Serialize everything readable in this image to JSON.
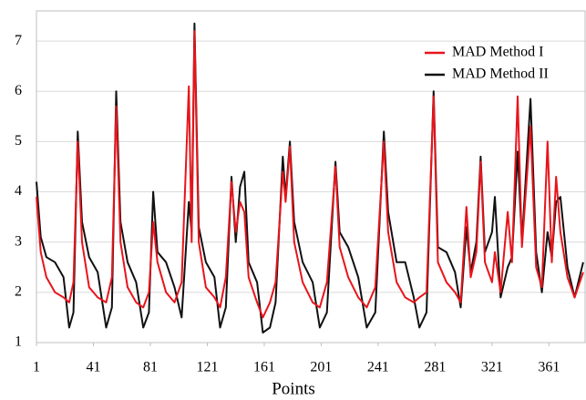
{
  "chart_data": {
    "type": "line",
    "x_label": "Points",
    "x": [
      1,
      4,
      8,
      14,
      20,
      24,
      27,
      30,
      33,
      38,
      44,
      50,
      54,
      57,
      60,
      65,
      71,
      76,
      80,
      83,
      86,
      92,
      98,
      103,
      108,
      110,
      112,
      115,
      120,
      126,
      130,
      134,
      138,
      141,
      144,
      147,
      150,
      156,
      160,
      165,
      169,
      174,
      176,
      179,
      182,
      188,
      195,
      200,
      205,
      211,
      214,
      220,
      227,
      233,
      239,
      245,
      248,
      254,
      260,
      266,
      270,
      275,
      280,
      283,
      289,
      295,
      299,
      303,
      306,
      310,
      313,
      316,
      321,
      323,
      327,
      332,
      335,
      339,
      342,
      348,
      352,
      356,
      360,
      363,
      366,
      369,
      374,
      379,
      385
    ],
    "series": [
      {
        "name": "MAD Method I",
        "color": "#e8141b",
        "values": [
          3.9,
          2.8,
          2.3,
          2.0,
          1.9,
          1.8,
          2.2,
          5.0,
          3.0,
          2.1,
          1.9,
          1.8,
          2.3,
          5.7,
          3.0,
          2.1,
          1.8,
          1.7,
          2.0,
          3.4,
          2.6,
          2.0,
          1.8,
          2.2,
          6.1,
          3.0,
          7.2,
          3.0,
          2.1,
          1.9,
          1.7,
          2.3,
          4.2,
          3.2,
          3.8,
          3.6,
          2.3,
          1.8,
          1.5,
          1.8,
          2.2,
          4.4,
          3.8,
          4.9,
          3.0,
          2.2,
          1.8,
          1.7,
          2.2,
          4.5,
          2.9,
          2.3,
          1.9,
          1.7,
          2.1,
          5.0,
          3.2,
          2.2,
          1.9,
          1.8,
          1.9,
          2.0,
          5.9,
          2.6,
          2.2,
          2.0,
          1.8,
          3.7,
          2.3,
          2.8,
          4.6,
          2.6,
          2.2,
          2.8,
          2.0,
          3.6,
          2.6,
          5.9,
          2.9,
          5.3,
          2.5,
          2.1,
          5.0,
          2.6,
          4.3,
          3.2,
          2.3,
          1.9,
          2.4
        ]
      },
      {
        "name": "MAD Method II",
        "color": "#111111",
        "values": [
          4.2,
          3.1,
          2.7,
          2.6,
          2.3,
          1.3,
          1.6,
          5.2,
          3.4,
          2.7,
          2.4,
          1.3,
          1.7,
          6.0,
          3.4,
          2.6,
          2.2,
          1.3,
          1.6,
          4.0,
          2.8,
          2.6,
          2.1,
          1.5,
          3.8,
          3.2,
          7.35,
          3.3,
          2.6,
          2.3,
          1.3,
          1.7,
          4.3,
          3.0,
          4.1,
          4.4,
          2.6,
          2.2,
          1.2,
          1.3,
          1.8,
          4.7,
          3.9,
          5.0,
          3.4,
          2.6,
          2.2,
          1.3,
          1.6,
          4.6,
          3.2,
          2.9,
          2.3,
          1.3,
          1.6,
          5.2,
          3.6,
          2.6,
          2.6,
          1.9,
          1.3,
          1.6,
          6.0,
          2.9,
          2.8,
          2.4,
          1.7,
          3.3,
          2.4,
          3.0,
          4.7,
          2.8,
          3.2,
          3.9,
          1.9,
          2.5,
          2.7,
          4.8,
          3.0,
          5.85,
          2.8,
          2.0,
          3.2,
          2.7,
          3.8,
          3.9,
          2.5,
          1.9,
          2.6
        ]
      }
    ],
    "xlim": [
      1,
      387
    ],
    "ylim": [
      1,
      7.6
    ],
    "xticks": [
      1,
      41,
      81,
      121,
      161,
      201,
      241,
      281,
      321,
      361
    ],
    "yticks": [
      1,
      2,
      3,
      4,
      5,
      6,
      7
    ],
    "grid": true
  }
}
